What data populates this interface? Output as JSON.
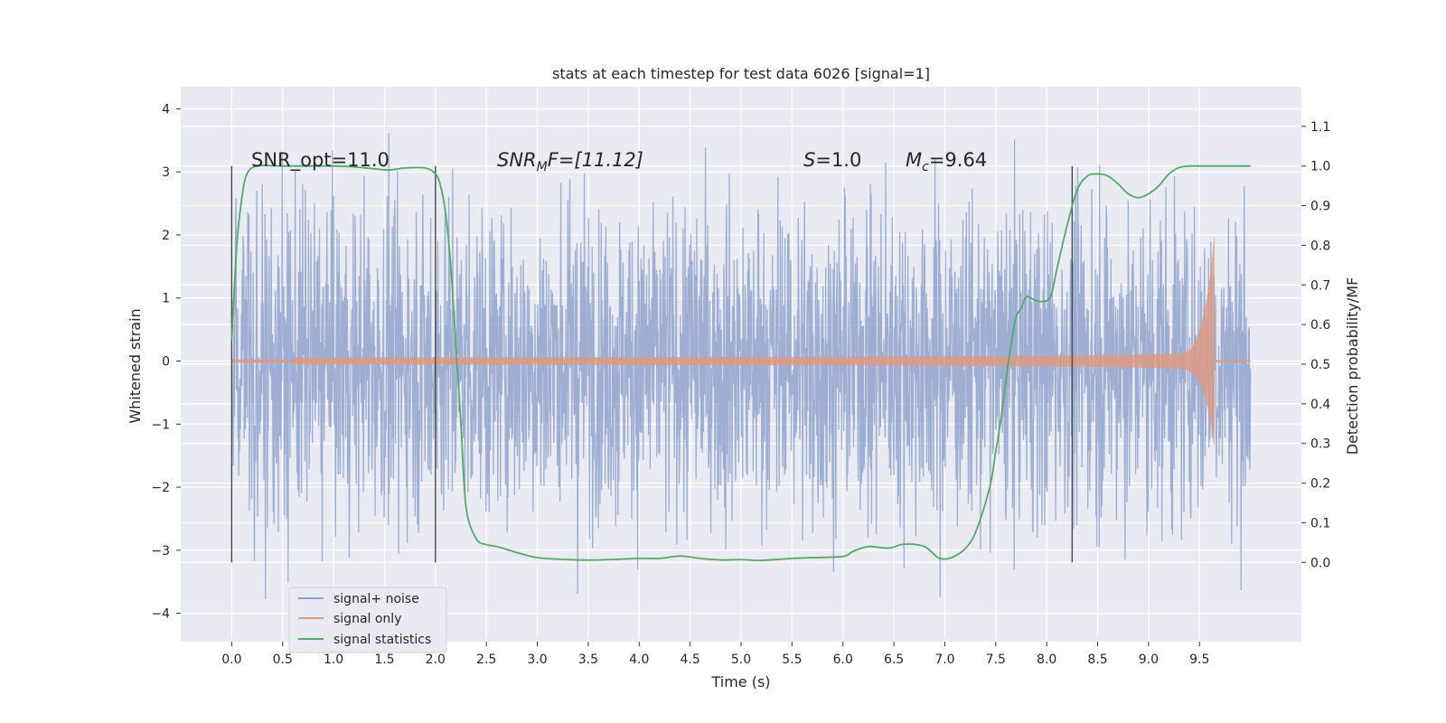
{
  "chart_data": {
    "type": "line",
    "title": "stats at each timestep for test data 6026 [signal=1]",
    "xlabel": "Time (s)",
    "ylabel_left": "Whitened strain",
    "ylabel_right": "Detection probability/MF",
    "xlim": [
      -0.5,
      10.5
    ],
    "ylim_left": [
      -4.45,
      4.35
    ],
    "ylim_right": [
      -0.2,
      1.2
    ],
    "xticks": [
      "0.0",
      "0.5",
      "1.0",
      "1.5",
      "2.0",
      "2.5",
      "3.0",
      "3.5",
      "4.0",
      "4.5",
      "5.0",
      "5.5",
      "6.0",
      "6.5",
      "7.0",
      "7.5",
      "8.0",
      "8.5",
      "9.0",
      "9.5"
    ],
    "yticks_left": [
      "4",
      "3",
      "2",
      "1",
      "0",
      "−1",
      "−2",
      "−3",
      "−4"
    ],
    "yticks_right": [
      "1.1",
      "1.0",
      "0.9",
      "0.8",
      "0.7",
      "0.6",
      "0.5",
      "0.4",
      "0.3",
      "0.2",
      "0.1",
      "0.0"
    ],
    "grid": true,
    "legend_position": "lower-left",
    "annotations": {
      "snr_opt": "SNR_opt=11.0",
      "snr_mf_main": "SNR",
      "snr_mf_sub": "M",
      "snr_mf_rest": "F=[11.12]",
      "s_main": "S",
      "s_rest": "=1.0",
      "mc_main": "M",
      "mc_sub": "c",
      "mc_rest": "=9.64"
    },
    "vlines_x": [
      0.0,
      2.0,
      8.25
    ],
    "series": [
      {
        "name": "signal+ noise",
        "color": "#8fa3cc",
        "kind": "noise",
        "x_range": [
          0.0,
          10.0
        ],
        "approx_amplitude_range": [
          -4.0,
          4.0
        ]
      },
      {
        "name": "signal only",
        "color": "#dd9a80",
        "kind": "chirp",
        "x_range": [
          0.0,
          10.0
        ],
        "merger_time": 9.65,
        "peak_amplitude": [
          -1.4,
          2.05
        ]
      },
      {
        "name": "signal statistics",
        "color": "#55a868",
        "kind": "curve",
        "x": [
          0.0,
          0.05,
          0.1,
          0.15,
          0.25,
          0.5,
          0.8,
          1.0,
          1.2,
          1.4,
          1.55,
          1.7,
          1.9,
          2.0,
          2.05,
          2.1,
          2.15,
          2.2,
          2.25,
          2.3,
          2.4,
          2.5,
          2.6,
          2.8,
          3.0,
          3.3,
          3.6,
          4.0,
          4.2,
          4.4,
          4.6,
          4.8,
          5.0,
          5.2,
          5.5,
          5.7,
          6.0,
          6.1,
          6.25,
          6.45,
          6.6,
          6.8,
          6.95,
          7.1,
          7.25,
          7.35,
          7.45,
          7.5,
          7.55,
          7.6,
          7.65,
          7.7,
          7.75,
          7.8,
          7.9,
          8.0,
          8.05,
          8.1,
          8.2,
          8.3,
          8.4,
          8.5,
          8.6,
          8.7,
          8.8,
          8.9,
          9.0,
          9.1,
          9.2,
          9.3,
          9.4,
          9.5,
          9.7,
          10.0
        ],
        "y": [
          0.56,
          0.8,
          0.92,
          0.98,
          1.0,
          1.0,
          1.0,
          1.0,
          0.998,
          0.993,
          0.99,
          0.995,
          0.995,
          0.98,
          0.95,
          0.88,
          0.75,
          0.55,
          0.35,
          0.14,
          0.06,
          0.045,
          0.04,
          0.025,
          0.012,
          0.007,
          0.006,
          0.01,
          0.01,
          0.016,
          0.01,
          0.006,
          0.007,
          0.005,
          0.01,
          0.012,
          0.015,
          0.028,
          0.04,
          0.036,
          0.046,
          0.04,
          0.01,
          0.016,
          0.05,
          0.11,
          0.2,
          0.28,
          0.36,
          0.46,
          0.55,
          0.62,
          0.64,
          0.67,
          0.66,
          0.66,
          0.68,
          0.74,
          0.85,
          0.94,
          0.975,
          0.98,
          0.975,
          0.955,
          0.93,
          0.92,
          0.93,
          0.95,
          0.98,
          0.996,
          1.0,
          1.0,
          1.0,
          1.0
        ]
      }
    ]
  }
}
